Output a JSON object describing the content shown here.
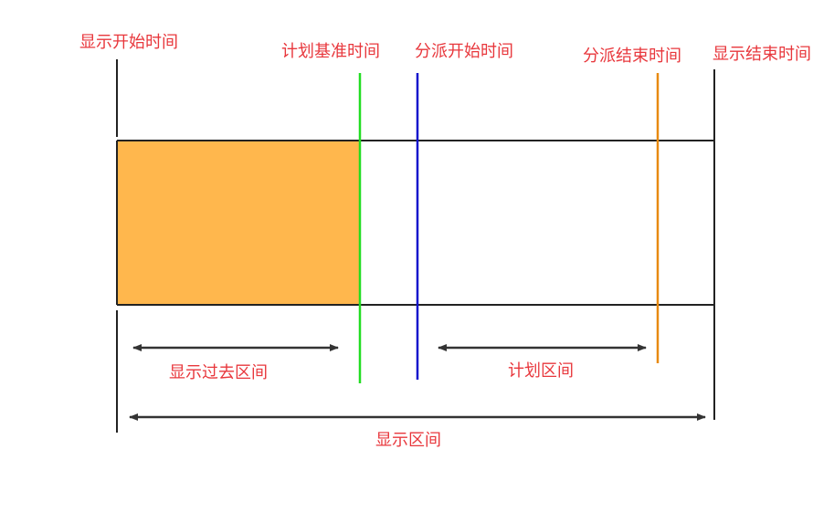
{
  "colors": {
    "label": "#e8373c",
    "past_fill": "#ffb74d",
    "baseline": "#22dd22",
    "dispatch_start": "#1010cc",
    "dispatch_end": "#e88a10",
    "outline": "#222222",
    "arrow": "#333333"
  },
  "labels": {
    "display_start": "显示开始时间",
    "plan_baseline": "计划基准时间",
    "dispatch_start": "分派开始时间",
    "dispatch_end": "分派结束时间",
    "display_end": "显示结束时间",
    "past_interval": "显示过去区间",
    "plan_interval": "计划区间",
    "display_interval": "显示区间"
  }
}
